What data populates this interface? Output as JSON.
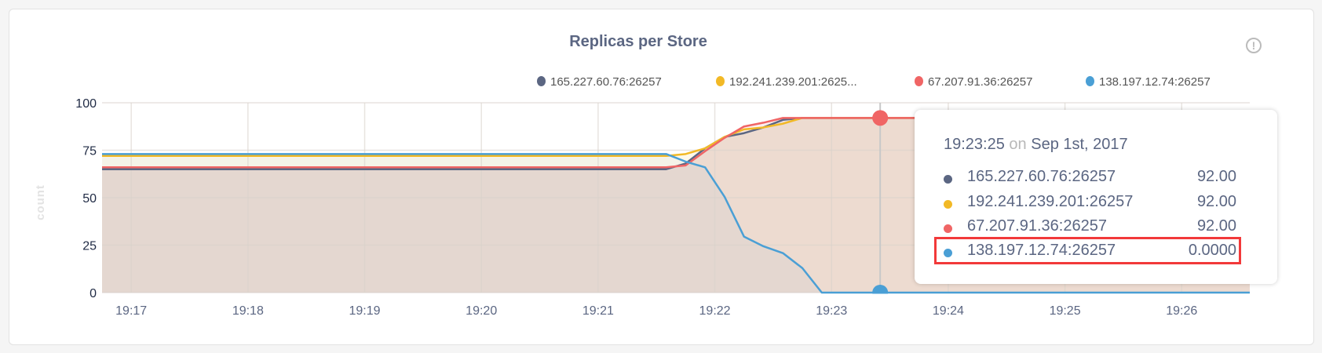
{
  "chart_data": {
    "type": "area",
    "title": "Replicas per Store",
    "ylabel": "count",
    "xlabel": "",
    "ylim": [
      0,
      100
    ],
    "xlim": [
      "19:16:45",
      "19:26:35"
    ],
    "yticks": [
      "0",
      "25",
      "50",
      "75",
      "100"
    ],
    "xticks": [
      "19:17",
      "19:18",
      "19:19",
      "19:20",
      "19:21",
      "19:22",
      "19:23",
      "19:24",
      "19:25",
      "19:26"
    ],
    "grid": true,
    "legend_position": "top-right",
    "x": [
      "19:16:45",
      "19:21:35",
      "19:21:45",
      "19:21:55",
      "19:22:05",
      "19:22:15",
      "19:22:25",
      "19:22:35",
      "19:22:45",
      "19:22:55",
      "19:26:35"
    ],
    "series": [
      {
        "name": "165.227.60.76:26257",
        "color": "#5b6682",
        "values": [
          65,
          65,
          68,
          76,
          82,
          84,
          87,
          91,
          92,
          92,
          92
        ]
      },
      {
        "name": "192.241.239.201:26257",
        "legend_label": "192.241.239.201:2625...",
        "color": "#f2b926",
        "values": [
          72,
          72,
          73,
          76,
          82,
          86,
          87,
          89,
          92,
          92,
          92
        ]
      },
      {
        "name": "67.207.91.36:26257",
        "color": "#f06565",
        "values": [
          66,
          66,
          67,
          74.5,
          81.5,
          87.5,
          89.5,
          92,
          92,
          92,
          92
        ]
      },
      {
        "name": "138.197.12.74:26257",
        "color": "#4a9fd5",
        "values": [
          73,
          73,
          69,
          66,
          50.5,
          29.5,
          24.4,
          20.8,
          12.9,
          0,
          0
        ]
      }
    ],
    "hover": {
      "time": "19:23:25",
      "on": "on",
      "date": "Sep 1st, 2017",
      "rows": [
        {
          "name": "165.227.60.76:26257",
          "value": "92.00"
        },
        {
          "name": "192.241.239.201:26257",
          "value": "92.00"
        },
        {
          "name": "67.207.91.36:26257",
          "value": "92.00"
        },
        {
          "name": "138.197.12.74:26257",
          "value": "0.0000",
          "highlighted": true
        }
      ]
    }
  },
  "info_icon": "info-circle-icon"
}
